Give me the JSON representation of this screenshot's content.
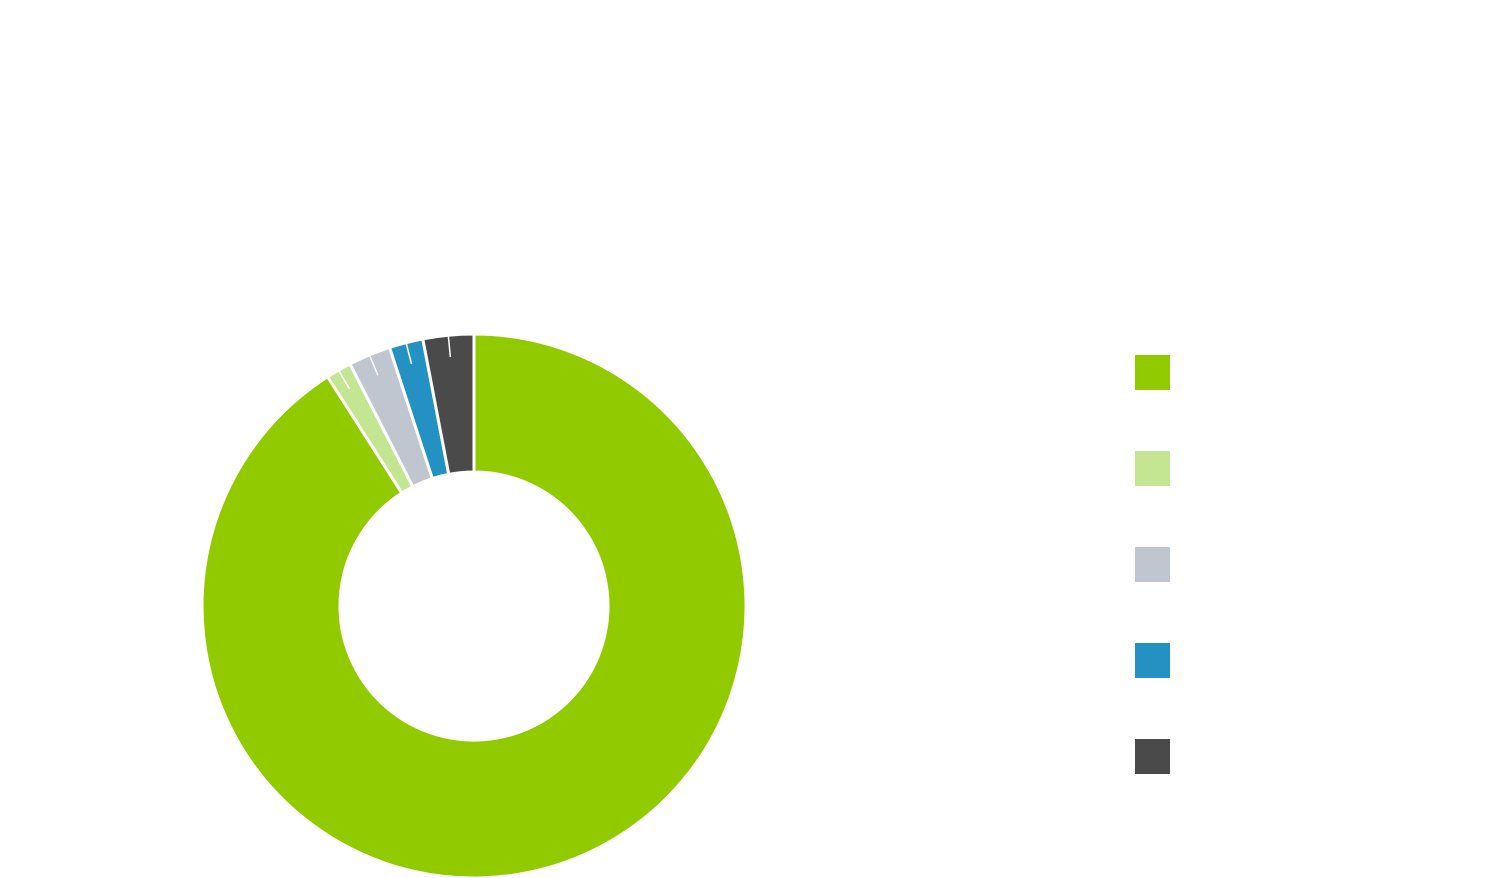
{
  "chart_data": {
    "type": "pie",
    "donut": true,
    "title": "",
    "slices": [
      {
        "label": "",
        "value": 90.5,
        "color": "#92ca00"
      },
      {
        "label": "",
        "value": 1.5,
        "color": "#c4e591"
      },
      {
        "label": "",
        "value": 2.5,
        "color": "#c0c6cf"
      },
      {
        "label": "",
        "value": 2.0,
        "color": "#2391c2"
      },
      {
        "label": "",
        "value": 3.0,
        "color": "#4a4a4a"
      }
    ],
    "legend_position": "right",
    "start": "top",
    "direction": "clockwise"
  }
}
